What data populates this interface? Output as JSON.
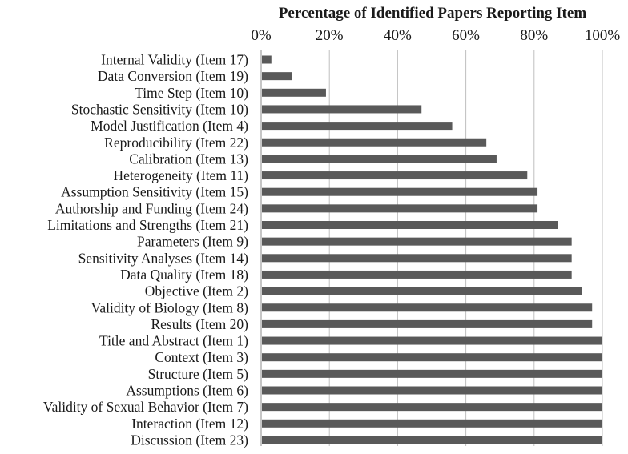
{
  "chart_data": {
    "type": "bar",
    "orientation": "horizontal",
    "title": "Percentage of Identified Papers Reporting Item",
    "x_axis_position": "top",
    "xlim": [
      0,
      100
    ],
    "x_ticks": [
      "0%",
      "20%",
      "40%",
      "60%",
      "80%",
      "100%"
    ],
    "grid": true,
    "bar_color": "#595959",
    "grid_color": "#bfbfbf",
    "categories": [
      "Internal Validity (Item 17)",
      "Data Conversion (Item 19)",
      "Time Step (Item 10)",
      "Stochastic Sensitivity (Item 10)",
      "Model Justification (Item 4)",
      "Reproducibility (Item 22)",
      "Calibration (Item 13)",
      "Heterogeneity (Item 11)",
      "Assumption Sensitivity (Item 15)",
      "Authorship and Funding (Item 24)",
      "Limitations and Strengths (Item 21)",
      "Parameters (Item 9)",
      "Sensitivity Analyses (Item 14)",
      "Data Quality (Item 18)",
      "Objective (Item 2)",
      "Validity of Biology (Item 8)",
      "Results (Item 20)",
      "Title and Abstract (Item 1)",
      "Context (Item 3)",
      "Structure (Item 5)",
      "Assumptions (Item 6)",
      "Validity of Sexual Behavior (Item 7)",
      "Interaction (Item 12)",
      "Discussion (Item 23)"
    ],
    "values": [
      3,
      9,
      19,
      47,
      56,
      66,
      69,
      78,
      81,
      81,
      87,
      91,
      91,
      91,
      94,
      97,
      97,
      100,
      100,
      100,
      100,
      100,
      100,
      100
    ]
  }
}
